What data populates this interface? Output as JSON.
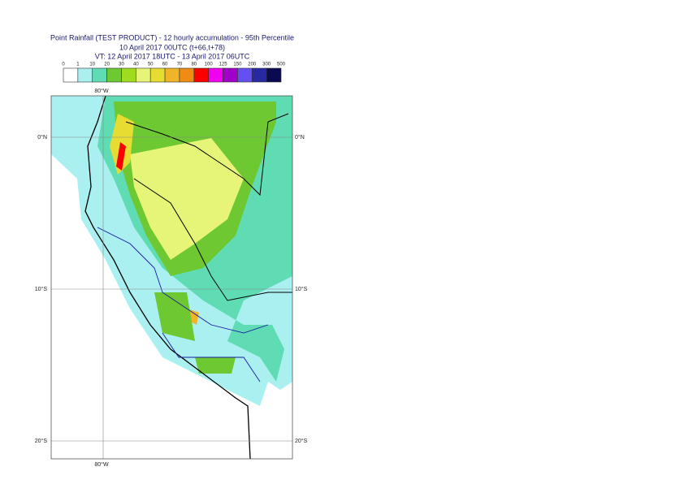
{
  "header": {
    "title": "Point Rainfall (TEST PRODUCT) - 12 hourly accumulation - 95th Percentile",
    "base": "10 April 2017 00UTC (t+66,t+78)",
    "valid": "VT: 12 April 2017 18UTC - 13 April 2017 06UTC"
  },
  "legend": {
    "ticks": [
      0,
      1,
      10,
      20,
      30,
      40,
      50,
      60,
      70,
      80,
      100,
      125,
      150,
      200,
      300,
      500
    ],
    "colors": [
      "#ffffff",
      "#aaf0f0",
      "#5fdcb4",
      "#6ec832",
      "#a0dc1e",
      "#e6f578",
      "#e6dc32",
      "#f0b428",
      "#f08c14",
      "#fa0000",
      "#f000f0",
      "#a000c8",
      "#6450f0",
      "#2828a0",
      "#0a0a50"
    ]
  },
  "map": {
    "lon_top": "80°W",
    "lon_bottom": "80°W",
    "lat_left": [
      "0°N",
      "10°S",
      "20°S"
    ],
    "lat_right": [
      "0°N",
      "10°S",
      "20°S"
    ]
  }
}
